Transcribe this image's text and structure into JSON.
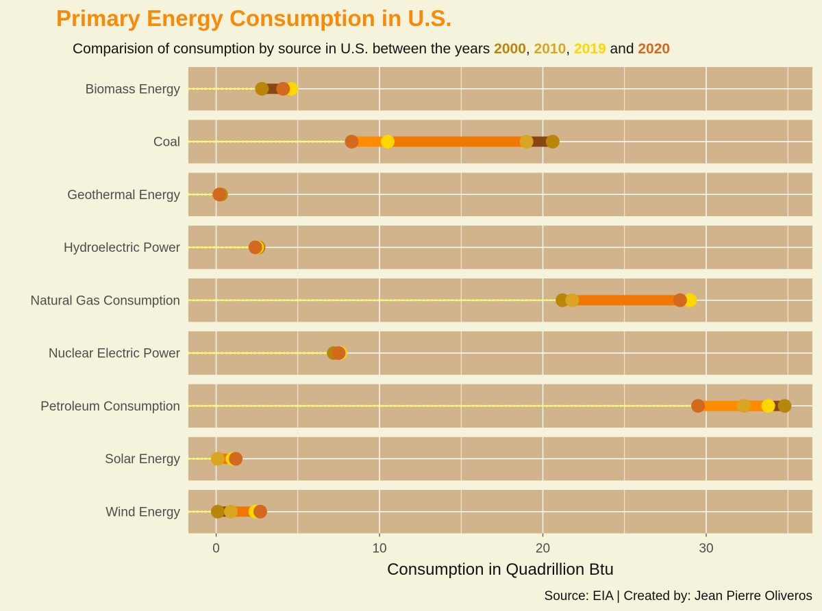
{
  "chart_data": {
    "type": "dumbbell",
    "title": "Primary Energy Consumption in U.S.",
    "subtitle": {
      "prefix": "Comparision of consumption by source in U.S. between the years ",
      "sep1": ", ",
      "sep2": ", ",
      "sep3": " and ",
      "years": [
        "2000",
        "2010",
        "2019",
        "2020"
      ]
    },
    "xlabel": "Consumption in Quadrillion Btu",
    "ylabel": "",
    "caption": "Source: EIA | Created by: Jean Pierre Oliveros",
    "xlim": [
      -1.7,
      36.5
    ],
    "xticks": [
      0,
      10,
      20,
      30
    ],
    "grid": true,
    "categories": [
      "Biomass Energy",
      "Coal",
      "Geothermal Energy",
      "Hydroelectric Power",
      "Natural Gas Consumption",
      "Nuclear Electric Power",
      "Petroleum Consumption",
      "Solar Energy",
      "Wind Energy"
    ],
    "series": [
      {
        "name": "2000",
        "color": "#b8860b",
        "values": [
          2.8,
          20.6,
          0.3,
          2.6,
          21.2,
          7.2,
          34.8,
          0.1,
          0.1
        ]
      },
      {
        "name": "2010",
        "color": "#daa520",
        "values": [
          4.5,
          19.0,
          0.2,
          2.5,
          21.8,
          7.5,
          32.3,
          0.1,
          0.9
        ]
      },
      {
        "name": "2019",
        "color": "#ffd700",
        "values": [
          4.6,
          10.5,
          0.2,
          2.5,
          29.0,
          7.6,
          33.8,
          1.0,
          2.4
        ]
      },
      {
        "name": "2020",
        "color": "#d2691e",
        "values": [
          4.1,
          8.3,
          0.2,
          2.4,
          28.4,
          7.5,
          29.5,
          1.2,
          2.7
        ]
      }
    ],
    "colors": {
      "background": "#f5f3dc",
      "panel": "#d2b48c",
      "gridline": "#ffffff",
      "segment_2000_2010": "#8b4513",
      "segment_2010_2019": "#f07800",
      "segment_2019_2020": "#ff8c00",
      "leader": "#ffff33",
      "title": "#f68b0b"
    }
  }
}
